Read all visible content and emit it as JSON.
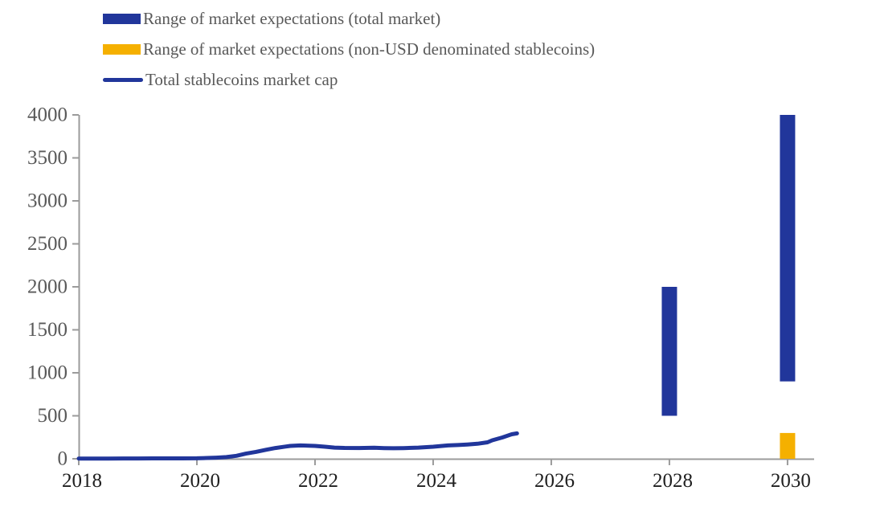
{
  "legend": {
    "items": [
      {
        "key": "total_range",
        "label": "Range of market expectations (total market)",
        "swatch": "bar",
        "color": "#21369B"
      },
      {
        "key": "nonusd_range",
        "label": "Range of market expectations (non-USD denominated stablecoins)",
        "swatch": "bar",
        "color": "#F5B000"
      },
      {
        "key": "total_line",
        "label": "Total stablecoins market cap",
        "swatch": "line",
        "color": "#21369B"
      }
    ]
  },
  "chart_data": {
    "type": "composite",
    "title": "",
    "xlabel": "",
    "ylabel": "",
    "grid": false,
    "legend_position": "top-left",
    "x_axis": {
      "min": 2018,
      "max": 2030.45,
      "ticks": [
        2018,
        2020,
        2022,
        2024,
        2026,
        2028,
        2030
      ]
    },
    "y_axis": {
      "min": 0,
      "max": 4000,
      "ticks": [
        0,
        500,
        1000,
        1500,
        2000,
        2500,
        3000,
        3500,
        4000
      ]
    },
    "series": [
      {
        "key": "total_line",
        "name": "Total stablecoins market cap",
        "type": "line",
        "color": "#21369B",
        "points": [
          [
            2018.0,
            3
          ],
          [
            2018.25,
            3
          ],
          [
            2018.5,
            3
          ],
          [
            2018.75,
            4
          ],
          [
            2019.0,
            4
          ],
          [
            2019.25,
            5
          ],
          [
            2019.5,
            5
          ],
          [
            2019.75,
            5
          ],
          [
            2020.0,
            6
          ],
          [
            2020.17,
            9
          ],
          [
            2020.33,
            13
          ],
          [
            2020.5,
            20
          ],
          [
            2020.67,
            35
          ],
          [
            2020.83,
            60
          ],
          [
            2021.0,
            80
          ],
          [
            2021.17,
            105
          ],
          [
            2021.33,
            125
          ],
          [
            2021.5,
            142
          ],
          [
            2021.58,
            150
          ],
          [
            2021.75,
            155
          ],
          [
            2021.9,
            152
          ],
          [
            2022.0,
            150
          ],
          [
            2022.17,
            140
          ],
          [
            2022.33,
            130
          ],
          [
            2022.5,
            126
          ],
          [
            2022.75,
            125
          ],
          [
            2023.0,
            128
          ],
          [
            2023.17,
            124
          ],
          [
            2023.33,
            122
          ],
          [
            2023.5,
            124
          ],
          [
            2023.75,
            130
          ],
          [
            2024.0,
            140
          ],
          [
            2024.25,
            155
          ],
          [
            2024.42,
            160
          ],
          [
            2024.58,
            166
          ],
          [
            2024.75,
            175
          ],
          [
            2024.92,
            192
          ],
          [
            2025.0,
            215
          ],
          [
            2025.17,
            248
          ],
          [
            2025.33,
            285
          ],
          [
            2025.42,
            295
          ]
        ]
      },
      {
        "key": "total_range",
        "name": "Range of market expectations (total market)",
        "type": "range-bar",
        "color": "#21369B",
        "bars": [
          {
            "x": 2028,
            "low": 500,
            "high": 2000
          },
          {
            "x": 2030,
            "low": 900,
            "high": 4000
          }
        ]
      },
      {
        "key": "nonusd_range",
        "name": "Range of market expectations (non-USD denominated stablecoins)",
        "type": "range-bar",
        "color": "#F5B000",
        "bars": [
          {
            "x": 2030,
            "low": 0,
            "high": 300
          }
        ]
      }
    ]
  }
}
